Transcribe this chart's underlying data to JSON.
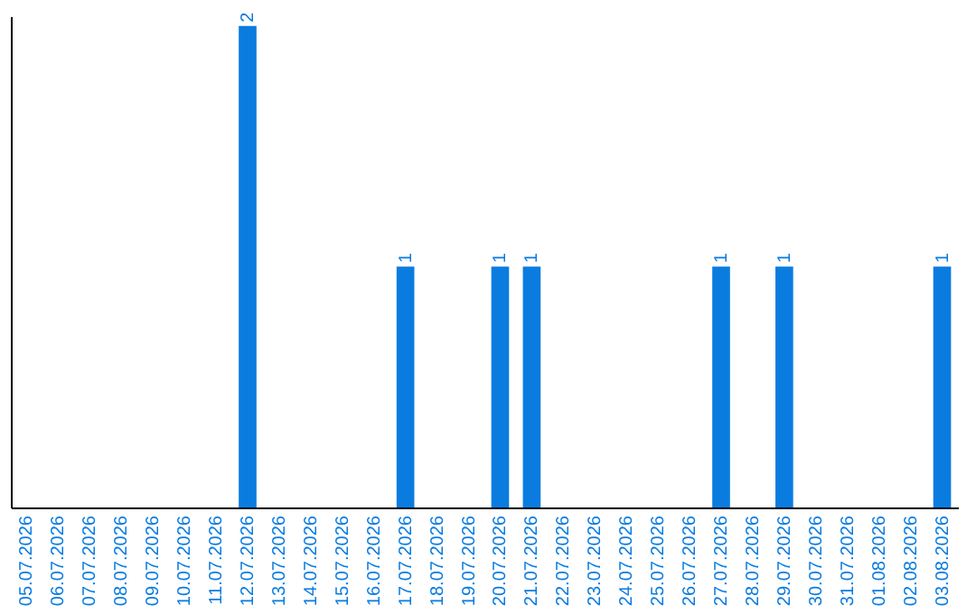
{
  "chart_data": {
    "type": "bar",
    "categories": [
      "05.07.2026",
      "06.07.2026",
      "07.07.2026",
      "08.07.2026",
      "09.07.2026",
      "10.07.2026",
      "11.07.2026",
      "12.07.2026",
      "13.07.2026",
      "14.07.2026",
      "15.07.2026",
      "16.07.2026",
      "17.07.2026",
      "18.07.2026",
      "19.07.2026",
      "20.07.2026",
      "21.07.2026",
      "22.07.2026",
      "23.07.2026",
      "24.07.2026",
      "25.07.2026",
      "26.07.2026",
      "27.07.2026",
      "28.07.2026",
      "29.07.2026",
      "30.07.2026",
      "31.07.2026",
      "01.08.2026",
      "02.08.2026",
      "03.08.2026"
    ],
    "values": [
      0,
      0,
      0,
      0,
      0,
      0,
      0,
      2,
      0,
      0,
      0,
      0,
      1,
      0,
      0,
      1,
      1,
      0,
      0,
      0,
      0,
      0,
      1,
      0,
      1,
      0,
      0,
      0,
      0,
      1
    ],
    "value_labels": [
      null,
      null,
      null,
      null,
      null,
      null,
      null,
      "2",
      null,
      null,
      null,
      null,
      "1",
      null,
      null,
      "1",
      "1",
      null,
      null,
      null,
      null,
      null,
      "1",
      null,
      "1",
      null,
      null,
      null,
      null,
      "1"
    ],
    "color": "#0a7ce0",
    "grid": false,
    "tick_labels": "x"
  }
}
